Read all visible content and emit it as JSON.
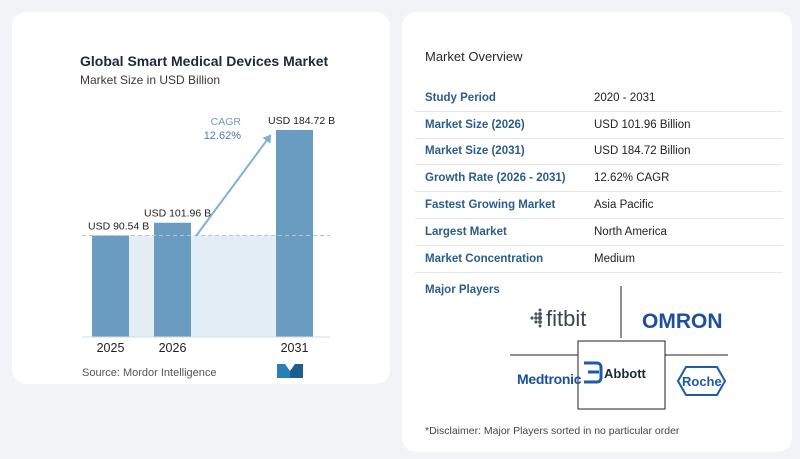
{
  "chart_data": {
    "type": "bar",
    "title": "Global Smart Medical Devices Market",
    "subtitle": "Market Size in USD Billion",
    "categories": [
      "2025",
      "2026",
      "2031"
    ],
    "values": [
      90.54,
      101.96,
      184.72
    ],
    "value_labels": [
      "USD 90.54 B",
      "USD 101.96 B",
      "USD 184.72 B"
    ],
    "cagr_label": "CAGR",
    "cagr_value": "12.62%",
    "ylim": [
      0,
      184.72
    ],
    "bar_color": "#6a9cc1",
    "shade_color": "#e3eef6",
    "arrow_color": "#7fb3d5"
  },
  "source": "Source:  Mordor Intelligence",
  "overview": {
    "title": "Market Overview",
    "rows": [
      {
        "key": "Study Period",
        "value": "2020 - 2031"
      },
      {
        "key": "Market Size (2026)",
        "value": "USD 101.96 Billion"
      },
      {
        "key": "Market Size (2031)",
        "value": "USD 184.72 Billion"
      },
      {
        "key": "Growth Rate (2026 - 2031)",
        "value": "12.62% CAGR"
      },
      {
        "key": "Fastest Growing Market",
        "value": "Asia Pacific"
      },
      {
        "key": "Largest Market",
        "value": "North America"
      },
      {
        "key": "Market Concentration",
        "value": "Medium"
      }
    ]
  },
  "players": {
    "title": "Major Players",
    "logos": [
      "fitbit",
      "OMRON",
      "Medtronic",
      "Abbott",
      "Roche"
    ]
  },
  "disclaimer": "*Disclaimer: Major Players sorted in no particular order",
  "colors": {
    "label_blue": "#2b5d8a",
    "omron_blue": "#1f4e9c",
    "medtronic_blue": "#1a4f9a",
    "roche_blue": "#1f5aa8"
  }
}
